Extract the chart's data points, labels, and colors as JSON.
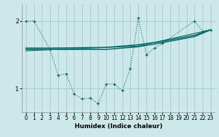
{
  "xlabel": "Humidex (Indice chaleur)",
  "bg_color": "#cce8e8",
  "grid_color": "#aacccc",
  "line_color": "#006666",
  "xlim": [
    -0.5,
    23.5
  ],
  "ylim": [
    0.65,
    2.25
  ],
  "yticks": [
    1,
    2
  ],
  "xticks": [
    0,
    1,
    2,
    3,
    4,
    5,
    6,
    7,
    8,
    9,
    10,
    11,
    12,
    13,
    14,
    15,
    16,
    17,
    18,
    19,
    20,
    21,
    22,
    23
  ],
  "jagged": {
    "x": [
      0,
      1,
      3,
      4,
      5,
      6,
      7,
      8,
      9,
      10,
      11,
      12,
      13,
      14,
      15,
      16,
      17,
      21,
      22,
      23
    ],
    "y": [
      2.0,
      2.0,
      1.58,
      1.2,
      1.22,
      0.92,
      0.85,
      0.86,
      0.78,
      1.07,
      1.07,
      0.97,
      1.3,
      2.05,
      1.5,
      1.6,
      1.67,
      2.0,
      1.85,
      1.87
    ]
  },
  "line1": {
    "x": [
      0,
      3,
      10,
      14,
      17,
      21,
      23
    ],
    "y": [
      1.58,
      1.58,
      1.58,
      1.62,
      1.68,
      1.77,
      1.87
    ]
  },
  "line2": {
    "x": [
      0,
      3,
      10,
      14,
      17,
      21,
      23
    ],
    "y": [
      1.6,
      1.6,
      1.61,
      1.65,
      1.7,
      1.79,
      1.87
    ]
  },
  "line3": {
    "x": [
      0,
      14,
      23
    ],
    "y": [
      1.56,
      1.63,
      1.87
    ]
  }
}
